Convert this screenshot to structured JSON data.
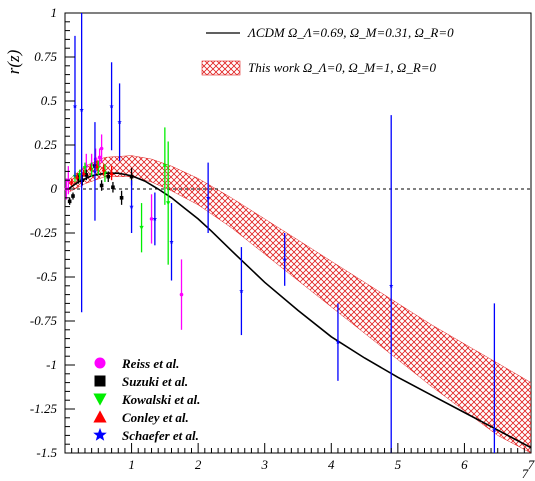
{
  "chart_data": {
    "type": "scatter",
    "ylabel": "r(z)",
    "xlim": [
      0,
      7
    ],
    "ylim": [
      -1.5,
      1
    ],
    "x_ticks": [
      "1",
      "2",
      "3",
      "4",
      "5",
      "6",
      "7"
    ],
    "x_corner_label": "7",
    "y_ticks": [
      "1",
      "0.75",
      "0.5",
      "0.25",
      "0",
      "-0.25",
      "-0.5",
      "-0.75",
      "-1",
      "-1.25",
      "-1.5"
    ],
    "reference_line_y": 0,
    "model_curves": [
      {
        "name": "ΛCDM  Ω_Λ=0.69, Ω_M=0.31, Ω_R=0",
        "style": "solid-black-line",
        "color": "#000000",
        "x": [
          0.05,
          0.2,
          0.4,
          0.6,
          0.8,
          1.0,
          1.2,
          1.4,
          1.6,
          1.8,
          2.0,
          2.2,
          2.5,
          3.0,
          3.5,
          4.0,
          4.5,
          5.0,
          5.5,
          6.0,
          6.5,
          7.0
        ],
        "y": [
          0.0,
          0.04,
          0.075,
          0.09,
          0.09,
          0.075,
          0.045,
          0.0,
          -0.05,
          -0.11,
          -0.17,
          -0.24,
          -0.35,
          -0.53,
          -0.69,
          -0.84,
          -0.96,
          -1.07,
          -1.17,
          -1.27,
          -1.37,
          -1.47
        ]
      }
    ],
    "model_bands": [
      {
        "name": "This work  Ω_Λ=0, Ω_M=1, Ω_R=0",
        "style": "red-crosshatch",
        "color": "#e02020",
        "x": [
          0.05,
          0.3,
          0.6,
          1.0,
          1.3,
          1.6,
          2.0,
          2.5,
          3.0,
          3.5,
          4.0,
          4.5,
          5.0,
          5.5,
          6.0,
          6.5,
          7.0
        ],
        "upper": [
          0.05,
          0.13,
          0.18,
          0.19,
          0.17,
          0.13,
          0.06,
          -0.05,
          -0.17,
          -0.29,
          -0.41,
          -0.53,
          -0.65,
          -0.77,
          -0.88,
          -0.99,
          -1.1
        ],
        "lower": [
          -0.02,
          0.03,
          0.07,
          0.07,
          0.04,
          -0.01,
          -0.09,
          -0.22,
          -0.37,
          -0.52,
          -0.67,
          -0.82,
          -0.97,
          -1.12,
          -1.26,
          -1.4,
          -1.5
        ]
      }
    ],
    "series": [
      {
        "name": "Reiss et al.",
        "marker": "circle",
        "color": "#ff00ff",
        "points": [
          {
            "x": 0.02,
            "y": 0.0,
            "err": 0.06
          },
          {
            "x": 0.05,
            "y": 0.05,
            "err": 0.08
          },
          {
            "x": 0.25,
            "y": 0.08,
            "err": 0.07
          },
          {
            "x": 0.32,
            "y": 0.13,
            "err": 0.07
          },
          {
            "x": 0.4,
            "y": 0.14,
            "err": 0.06
          },
          {
            "x": 0.46,
            "y": 0.17,
            "err": 0.06
          },
          {
            "x": 0.52,
            "y": 0.18,
            "err": 0.05
          },
          {
            "x": 0.55,
            "y": 0.23,
            "err": 0.08
          },
          {
            "x": 1.3,
            "y": -0.17,
            "err": 0.14
          },
          {
            "x": 1.75,
            "y": -0.6,
            "err": 0.2
          }
        ]
      },
      {
        "name": "Suzuki et al.",
        "marker": "square",
        "color": "#000000",
        "points": [
          {
            "x": 0.07,
            "y": -0.07,
            "err": 0.02
          },
          {
            "x": 0.12,
            "y": -0.04,
            "err": 0.02
          },
          {
            "x": 0.2,
            "y": 0.06,
            "err": 0.03
          },
          {
            "x": 0.26,
            "y": 0.05,
            "err": 0.03
          },
          {
            "x": 0.32,
            "y": 0.08,
            "err": 0.03
          },
          {
            "x": 0.45,
            "y": 0.13,
            "err": 0.03
          },
          {
            "x": 0.55,
            "y": 0.02,
            "err": 0.03
          },
          {
            "x": 0.65,
            "y": 0.07,
            "err": 0.03
          },
          {
            "x": 0.72,
            "y": 0.01,
            "err": 0.03
          },
          {
            "x": 0.85,
            "y": -0.05,
            "err": 0.04
          },
          {
            "x": 1.0,
            "y": 0.07,
            "err": 0.05
          }
        ]
      },
      {
        "name": "Kowalski et al.",
        "marker": "triangle-down",
        "color": "#00ee00",
        "points": [
          {
            "x": 0.15,
            "y": 0.07,
            "err": 0.03
          },
          {
            "x": 0.22,
            "y": 0.08,
            "err": 0.03
          },
          {
            "x": 0.3,
            "y": 0.12,
            "err": 0.03
          },
          {
            "x": 0.4,
            "y": 0.11,
            "err": 0.04
          },
          {
            "x": 0.5,
            "y": 0.12,
            "err": 0.04
          },
          {
            "x": 0.6,
            "y": 0.09,
            "err": 0.05
          },
          {
            "x": 1.15,
            "y": -0.22,
            "err": 0.14
          },
          {
            "x": 1.5,
            "y": 0.13,
            "err": 0.22
          },
          {
            "x": 1.55,
            "y": -0.08,
            "err": 0.35
          }
        ]
      },
      {
        "name": "Conley et al.",
        "marker": "triangle-up",
        "color": "#ff0000",
        "points": [
          {
            "x": 0.1,
            "y": 0.04,
            "err": 0.02
          },
          {
            "x": 0.18,
            "y": 0.07,
            "err": 0.02
          },
          {
            "x": 0.28,
            "y": 0.09,
            "err": 0.02
          },
          {
            "x": 0.38,
            "y": 0.12,
            "err": 0.02
          },
          {
            "x": 0.48,
            "y": 0.13,
            "err": 0.03
          },
          {
            "x": 0.58,
            "y": 0.11,
            "err": 0.03
          },
          {
            "x": 0.7,
            "y": 0.09,
            "err": 0.04
          }
        ]
      },
      {
        "name": "Schaefer et al.",
        "marker": "star",
        "color": "#0000ff",
        "points": [
          {
            "x": 0.15,
            "y": 0.47,
            "err": 0.4
          },
          {
            "x": 0.25,
            "y": 0.45,
            "err": 1.15
          },
          {
            "x": 0.45,
            "y": 0.1,
            "err": 0.28
          },
          {
            "x": 0.7,
            "y": 0.47,
            "err": 0.25
          },
          {
            "x": 0.82,
            "y": 0.38,
            "err": 0.22
          },
          {
            "x": 1.0,
            "y": -0.1,
            "err": 0.15
          },
          {
            "x": 1.35,
            "y": -0.17,
            "err": 0.15
          },
          {
            "x": 1.6,
            "y": -0.3,
            "err": 0.22
          },
          {
            "x": 2.15,
            "y": -0.05,
            "err": 0.2
          },
          {
            "x": 2.65,
            "y": -0.58,
            "err": 0.25
          },
          {
            "x": 3.3,
            "y": -0.4,
            "err": 0.15
          },
          {
            "x": 4.1,
            "y": -0.87,
            "err": 0.22
          },
          {
            "x": 4.9,
            "y": -0.55,
            "err": 0.97
          },
          {
            "x": 6.45,
            "y": -1.37,
            "err": 0.72
          }
        ]
      }
    ]
  }
}
